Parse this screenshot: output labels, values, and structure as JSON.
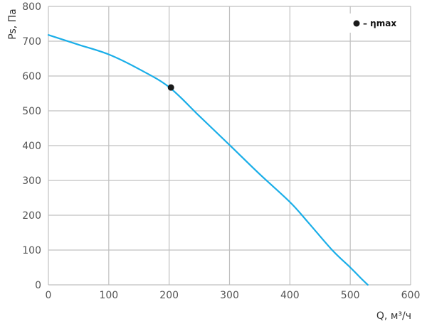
{
  "chart_data": {
    "type": "line",
    "title": "",
    "xlabel": "Q, м³/ч",
    "ylabel": "Ps, Па",
    "xlim": [
      0,
      600
    ],
    "ylim": [
      0,
      800
    ],
    "x_ticks": [
      0,
      100,
      200,
      300,
      400,
      500,
      600
    ],
    "y_ticks": [
      0,
      100,
      200,
      300,
      400,
      500,
      600,
      700,
      800
    ],
    "grid": true,
    "legend": {
      "placement": "top-right",
      "label": "– ηmax"
    },
    "series": [
      {
        "x": [
          0,
          50,
          100,
          150,
          200,
          250,
          300,
          350,
          400,
          430,
          470,
          500,
          520,
          529
        ],
        "y": [
          718,
          690,
          662,
          620,
          568,
          485,
          402,
          318,
          238,
          180,
          100,
          50,
          15,
          0
        ],
        "color": "#1aaee8"
      }
    ],
    "points": [
      {
        "label": "ηmax",
        "x": 203,
        "y": 567
      }
    ],
    "colors": {
      "line": "#1aaee8",
      "grid": "#c0c0c0",
      "marker": "#1a1a1a"
    }
  }
}
